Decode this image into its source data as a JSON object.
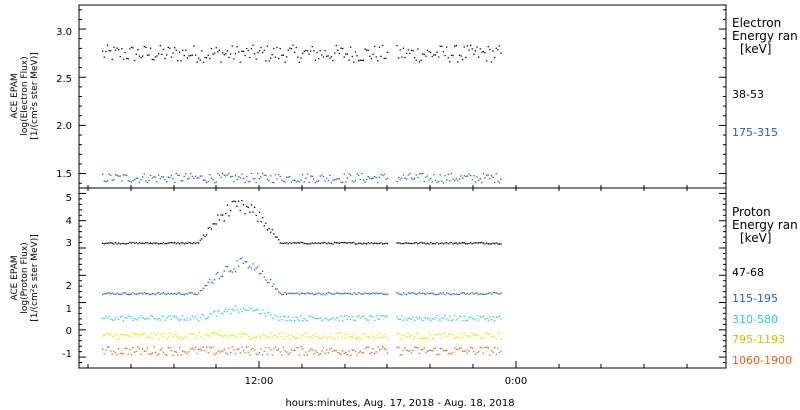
{
  "chart_data": [
    {
      "type": "scatter",
      "panel": "electron",
      "ylabel_lines": [
        "ACE EPAM",
        "log(Electron Flux)",
        "[1/(cm²s ster MeV)]"
      ],
      "ylim": [
        1.35,
        3.25
      ],
      "yticks": [
        "1.5",
        "2.0",
        "2.5",
        "3.0"
      ],
      "legend_heading": [
        "Electron",
        "Energy ran",
        "[keV]"
      ],
      "series": [
        {
          "name": "38-53",
          "color": "#000000",
          "base": 2.75,
          "spread": 0.09
        },
        {
          "name": "175-315",
          "color": "#1f5fc8",
          "base": 1.46,
          "spread": 0.05
        }
      ]
    },
    {
      "type": "scatter",
      "panel": "proton",
      "ylabel_lines": [
        "ACE EPAM",
        "log(Proton Flux)",
        "[1/(cm²s ster MeV)]"
      ],
      "ylim": [
        -1.4,
        5.2
      ],
      "yticks": [
        "-1",
        "0",
        "1",
        "2",
        "3",
        "4",
        "5"
      ],
      "legend_heading": [
        "Proton",
        "Energy ran",
        "[keV]"
      ],
      "series": [
        {
          "name": "47-68",
          "color": "#000000",
          "base": 3.2,
          "spread": 0.03,
          "peak": 1.6
        },
        {
          "name": "115-195",
          "color": "#1f5fc8",
          "base": 1.35,
          "spread": 0.04,
          "peak": 1.3
        },
        {
          "name": "310-580",
          "color": "#22d3d3",
          "base": 0.45,
          "spread": 0.1,
          "peak": 0.4
        },
        {
          "name": "795-1193",
          "color": "#e6e600",
          "base": -0.2,
          "spread": 0.12,
          "peak": 0
        },
        {
          "name": "1060-1900",
          "color": "#e8601c",
          "base": -0.75,
          "spread": 0.16,
          "peak": 0
        }
      ]
    }
  ],
  "x_axis": {
    "ticks": [
      "12:00",
      "0:00"
    ],
    "label": "hours:minutes, Aug. 17, 2018 - Aug. 18, 2018"
  }
}
